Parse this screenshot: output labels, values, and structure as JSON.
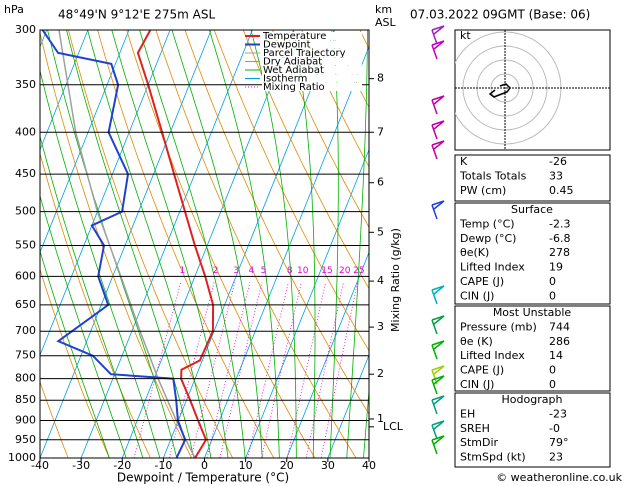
{
  "chart_data": {
    "type": "skewt",
    "title": "48°49'N 9°12'E 275m ASL",
    "subtitle": "07.03.2022 09GMT (Base: 06)",
    "y_label": "hPa",
    "x_label": "Dewpoint / Temperature (°C)",
    "y2_label": "Mixing Ratio (g/kg)",
    "km_label": [
      "km",
      "ASL"
    ],
    "xlim": [
      -40,
      40
    ],
    "xticks": [
      -40,
      -30,
      -20,
      -10,
      0,
      10,
      20,
      30,
      40
    ],
    "ylim": [
      1000,
      300
    ],
    "yticks": [
      300,
      350,
      400,
      450,
      500,
      550,
      600,
      650,
      700,
      750,
      800,
      850,
      900,
      950,
      1000
    ],
    "log_y": true,
    "series": [
      {
        "name": "Temperature",
        "color": "#e02020",
        "pressure": [
          1000,
          950,
          900,
          850,
          800,
          780,
          760,
          700,
          650,
          600,
          550,
          500,
          450,
          400,
          350,
          320,
          300
        ],
        "values": [
          -2.3,
          -1.4,
          -5.2,
          -9.1,
          -13.4,
          -14.2,
          -10.6,
          -10.3,
          -12.8,
          -17.5,
          -23,
          -28.7,
          -35,
          -42,
          -50,
          -55.6,
          -54.8
        ]
      },
      {
        "name": "Dewpoint",
        "color": "#2040d0",
        "pressure": [
          1000,
          950,
          900,
          850,
          800,
          790,
          750,
          720,
          650,
          600,
          550,
          520,
          500,
          450,
          400,
          350,
          330,
          320,
          300
        ],
        "values": [
          -6.8,
          -6.5,
          -10.1,
          -12.5,
          -15.3,
          -30.9,
          -37.1,
          -46.9,
          -38.3,
          -43.5,
          -45.1,
          -50,
          -44,
          -46.2,
          -55,
          -57.3,
          -61,
          -75,
          -81
        ]
      },
      {
        "name": "Parcel Trajectory",
        "color": "#a0a0a0",
        "pressure": [
          1000,
          900,
          800,
          700,
          600,
          500,
          400,
          300
        ],
        "values": [
          -2.3,
          -10.5,
          -19,
          -28,
          -38,
          -50,
          -63,
          -77
        ]
      }
    ],
    "legend_extra": [
      {
        "name": "Dry Adiabat",
        "color": "#e08a00"
      },
      {
        "name": "Wet Adiabat",
        "color": "#00b000"
      },
      {
        "name": "Isotherm",
        "color": "#00a0e0"
      },
      {
        "name": "Mixing Ratio",
        "color": "#e000e0"
      }
    ],
    "mixing_ratios": [
      1,
      2,
      3,
      4,
      5,
      8,
      10,
      15,
      20,
      25
    ],
    "km_ticks": [
      8,
      7,
      6,
      5,
      4,
      3,
      2,
      1
    ],
    "km_pressures": [
      344,
      400,
      461,
      530,
      608,
      692,
      790,
      896
    ],
    "lcl": {
      "label": "LCL",
      "pressure": 916
    }
  },
  "hodograph_plot": {
    "label": "kt"
  },
  "indices": {
    "rows": [
      [
        "K",
        "-26"
      ],
      [
        "Totals Totals",
        "33"
      ],
      [
        "PW (cm)",
        "0.45"
      ]
    ]
  },
  "surface": {
    "title": "Surface",
    "rows": [
      [
        "Temp (°C)",
        "-2.3"
      ],
      [
        "Dewp (°C)",
        "-6.8"
      ],
      [
        "θe(K)",
        "278"
      ],
      [
        "Lifted Index",
        "19"
      ],
      [
        "CAPE (J)",
        "0"
      ],
      [
        "CIN (J)",
        "0"
      ]
    ]
  },
  "most_unstable": {
    "title": "Most Unstable",
    "rows": [
      [
        "Pressure (mb)",
        "744"
      ],
      [
        "θe (K)",
        "286"
      ],
      [
        "Lifted Index",
        "14"
      ],
      [
        "CAPE (J)",
        "0"
      ],
      [
        "CIN (J)",
        "0"
      ]
    ]
  },
  "hodograph": {
    "title": "Hodograph",
    "rows": [
      [
        "EH",
        "-23"
      ],
      [
        "SREH",
        "-0"
      ],
      [
        "StmDir",
        "79°"
      ],
      [
        "StmSpd (kt)",
        "23"
      ]
    ]
  },
  "footer": "© weatheronline.co.uk"
}
